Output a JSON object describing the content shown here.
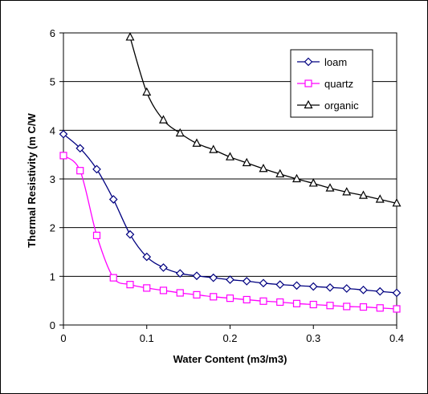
{
  "chart_data": {
    "type": "line",
    "title": "",
    "xlabel": "Water Content (m3/m3)",
    "ylabel": "Thermal Resistivity (m C/W",
    "xlim": [
      0,
      0.4
    ],
    "ylim": [
      0,
      6
    ],
    "xticks": [
      0,
      0.1,
      0.2,
      0.3,
      0.4
    ],
    "xtick_labels": [
      "0",
      "0.1",
      "0.2",
      "0.3",
      "0.4"
    ],
    "yticks": [
      0,
      1,
      2,
      3,
      4,
      5,
      6
    ],
    "ytick_labels": [
      "0",
      "1",
      "2",
      "3",
      "4",
      "5",
      "6"
    ],
    "grid": "horizontal major gridlines",
    "legend_position": "top-right",
    "series": [
      {
        "name": "loam",
        "color": "#000080",
        "marker": "diamond",
        "x": [
          0,
          0.02,
          0.04,
          0.06,
          0.08,
          0.1,
          0.12,
          0.14,
          0.16,
          0.18,
          0.2,
          0.22,
          0.24,
          0.26,
          0.28,
          0.3,
          0.32,
          0.34,
          0.36,
          0.38,
          0.4
        ],
        "y": [
          3.92,
          3.63,
          3.2,
          2.58,
          1.86,
          1.4,
          1.18,
          1.06,
          1.01,
          0.97,
          0.93,
          0.9,
          0.86,
          0.83,
          0.81,
          0.79,
          0.77,
          0.75,
          0.72,
          0.69,
          0.66
        ]
      },
      {
        "name": "quartz",
        "color": "#FF00FF",
        "marker": "square",
        "x": [
          0,
          0.02,
          0.04,
          0.06,
          0.08,
          0.1,
          0.12,
          0.14,
          0.16,
          0.18,
          0.2,
          0.22,
          0.24,
          0.26,
          0.28,
          0.3,
          0.32,
          0.34,
          0.36,
          0.38,
          0.4
        ],
        "y": [
          3.48,
          3.17,
          1.84,
          0.97,
          0.83,
          0.76,
          0.71,
          0.66,
          0.62,
          0.58,
          0.55,
          0.52,
          0.49,
          0.47,
          0.44,
          0.42,
          0.4,
          0.38,
          0.37,
          0.35,
          0.33
        ]
      },
      {
        "name": "organic",
        "color": "#000000",
        "marker": "triangle",
        "x": [
          0.08,
          0.1,
          0.12,
          0.14,
          0.16,
          0.18,
          0.2,
          0.22,
          0.24,
          0.26,
          0.28,
          0.3,
          0.32,
          0.34,
          0.36,
          0.38,
          0.4
        ],
        "y": [
          5.91,
          4.78,
          4.21,
          3.94,
          3.73,
          3.6,
          3.45,
          3.33,
          3.21,
          3.1,
          3.0,
          2.91,
          2.81,
          2.73,
          2.66,
          2.58,
          2.5
        ]
      }
    ]
  }
}
